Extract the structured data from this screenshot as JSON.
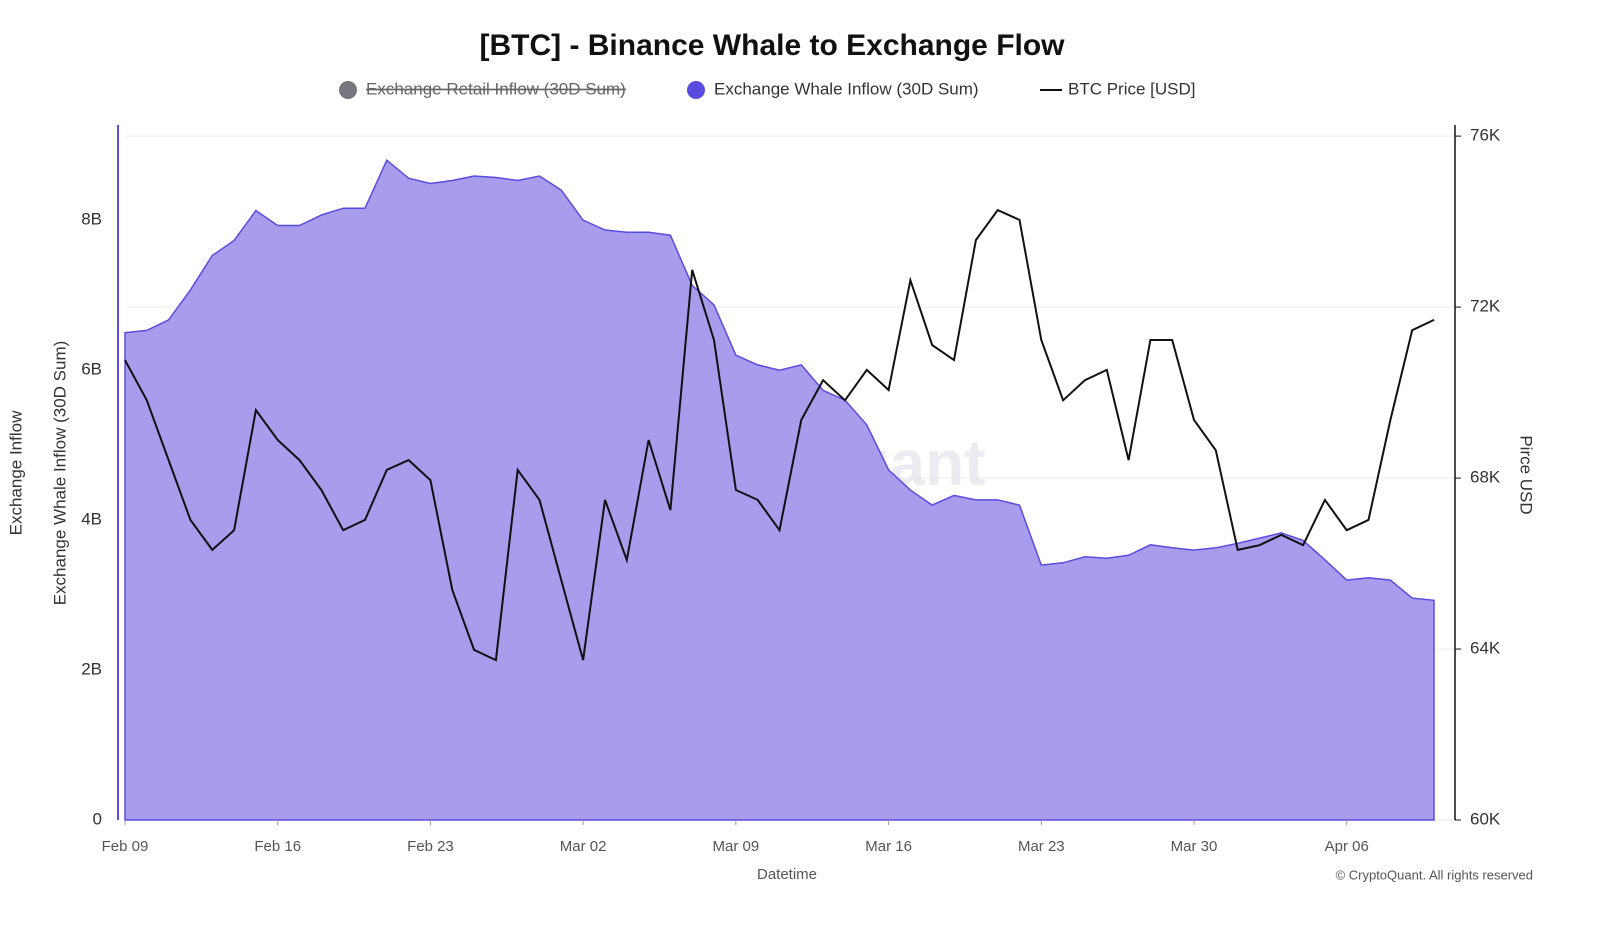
{
  "chart_data": {
    "type": "area-line",
    "title": "[BTC] - Binance Whale to Exchange Flow",
    "outer_ylabel": "Exchange Inflow",
    "ylabel": "Exchange Whale Inflow (30D Sum)",
    "y2label": "Pirce USD",
    "xlabel": "Datetime",
    "watermark": "CryptoQuant",
    "credit": "© CryptoQuant. All rights reserved",
    "x": [
      "Feb 09",
      "Feb 10",
      "Feb 11",
      "Feb 12",
      "Feb 13",
      "Feb 14",
      "Feb 15",
      "Feb 16",
      "Feb 17",
      "Feb 18",
      "Feb 19",
      "Feb 20",
      "Feb 21",
      "Feb 22",
      "Feb 23",
      "Feb 24",
      "Feb 25",
      "Feb 26",
      "Feb 27",
      "Feb 28",
      "Mar 01",
      "Mar 02",
      "Mar 03",
      "Mar 04",
      "Mar 05",
      "Mar 06",
      "Mar 07",
      "Mar 08",
      "Mar 09",
      "Mar 10",
      "Mar 11",
      "Mar 12",
      "Mar 13",
      "Mar 14",
      "Mar 15",
      "Mar 16",
      "Mar 17",
      "Mar 18",
      "Mar 19",
      "Mar 20",
      "Mar 21",
      "Mar 22",
      "Mar 23",
      "Mar 24",
      "Mar 25",
      "Mar 26",
      "Mar 27",
      "Mar 28",
      "Mar 29",
      "Mar 30",
      "Mar 31",
      "Apr 01",
      "Apr 02",
      "Apr 03",
      "Apr 04",
      "Apr 05",
      "Apr 06",
      "Apr 07",
      "Apr 08",
      "Apr 09",
      "Apr 10"
    ],
    "xticks": [
      "Feb 09",
      "Feb 16",
      "Feb 23",
      "Mar 02",
      "Mar 09",
      "Mar 16",
      "Mar 23",
      "Mar 30",
      "Apr 06"
    ],
    "series": [
      {
        "name": "Exchange Retail Inflow (30D Sum)",
        "color": "#76767e",
        "hidden": true
      },
      {
        "name": "Exchange Whale Inflow (30D Sum)",
        "color": "#5b4be0",
        "fill": "#a89ced",
        "values": [
          6.5,
          6.53,
          6.67,
          7.07,
          7.53,
          7.73,
          8.13,
          7.93,
          7.93,
          8.07,
          8.16,
          8.16,
          8.8,
          8.56,
          8.49,
          8.53,
          8.59,
          8.57,
          8.53,
          8.59,
          8.4,
          8.0,
          7.87,
          7.84,
          7.84,
          7.8,
          7.13,
          6.87,
          6.2,
          6.07,
          6.0,
          6.07,
          5.73,
          5.6,
          5.27,
          4.67,
          4.4,
          4.2,
          4.33,
          4.27,
          4.27,
          4.2,
          3.4,
          3.43,
          3.51,
          3.49,
          3.53,
          3.67,
          3.63,
          3.6,
          3.63,
          3.69,
          3.76,
          3.83,
          3.73,
          3.47,
          3.2,
          3.23,
          3.2,
          2.96,
          2.93
        ]
      },
      {
        "name": "BTC Price [USD]",
        "color": "#111111",
        "axis": "y2",
        "values": [
          70760,
          69820,
          68420,
          67020,
          66320,
          66780,
          69590,
          68890,
          68420,
          67720,
          66780,
          67020,
          68190,
          68420,
          67950,
          65380,
          63980,
          63740,
          68190,
          67490,
          65610,
          63740,
          67490,
          66080,
          68890,
          67250,
          72870,
          71230,
          67720,
          67490,
          66780,
          69360,
          70290,
          69820,
          70530,
          70060,
          72630,
          71110,
          70760,
          73570,
          74270,
          74040,
          71230,
          69820,
          70290,
          70530,
          68420,
          71230,
          71230,
          69360,
          68650,
          66320,
          66430,
          66670,
          66430,
          67490,
          66780,
          67020,
          69360,
          71460,
          71700
        ]
      }
    ],
    "ylim": [
      0,
      9.27
    ],
    "yticks": [
      0,
      {
        "value": 2,
        "label": "2B"
      },
      {
        "value": 4,
        "label": "4B"
      },
      {
        "value": 6,
        "label": "6B"
      },
      {
        "value": 8,
        "label": "8B"
      }
    ],
    "y2lim": [
      60000,
      76260
    ],
    "y2ticks": [
      {
        "value": 60000,
        "label": "60K"
      },
      {
        "value": 64000,
        "label": "64K"
      },
      {
        "value": 68000,
        "label": "68K"
      },
      {
        "value": 72000,
        "label": "72K"
      },
      {
        "value": 76000,
        "label": "76K"
      }
    ],
    "grid": true
  }
}
